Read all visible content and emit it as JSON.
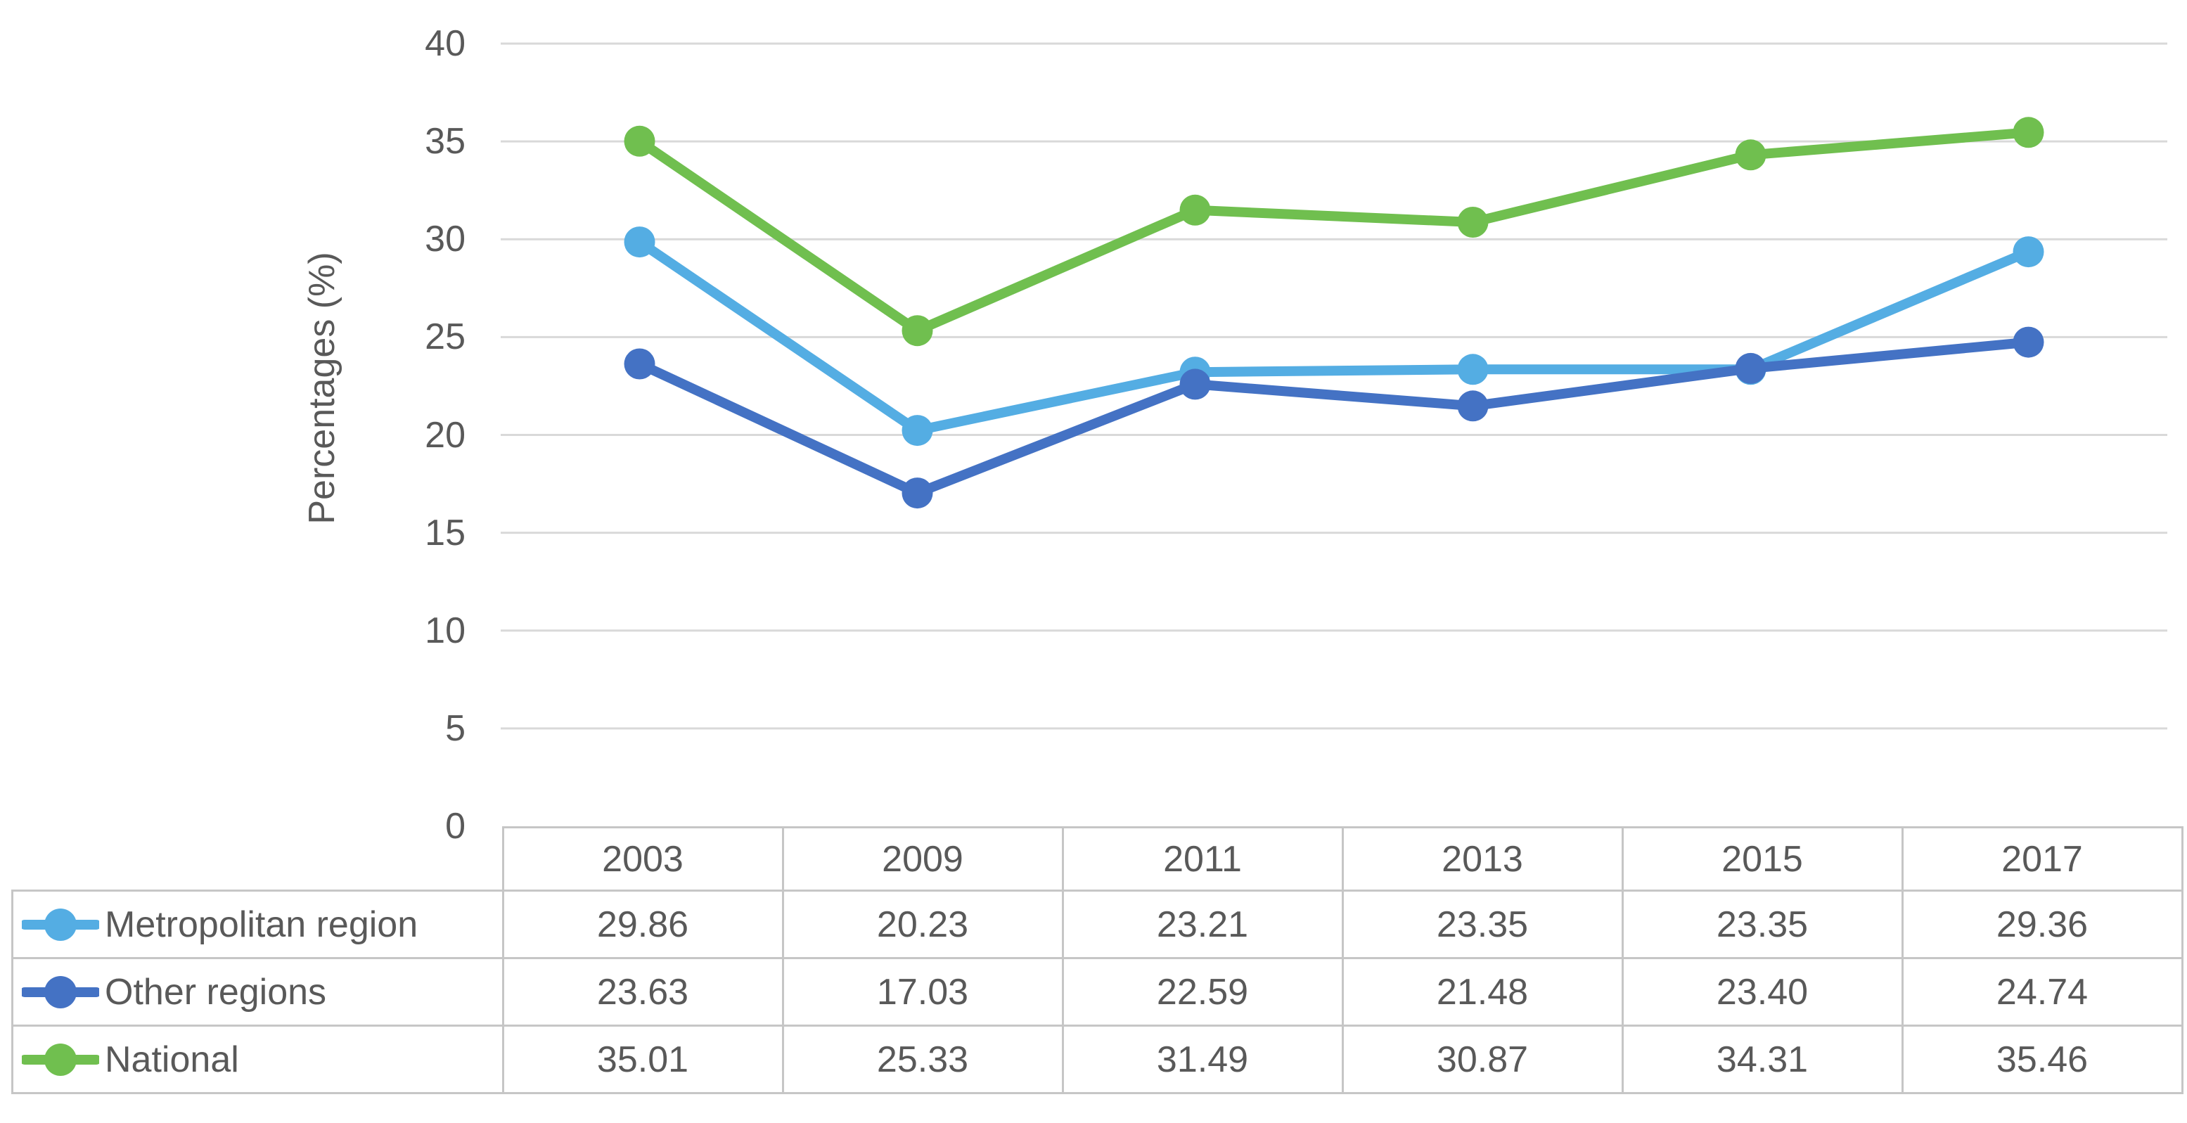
{
  "chart_data": {
    "type": "line",
    "categories": [
      "2003",
      "2009",
      "2011",
      "2013",
      "2015",
      "2017"
    ],
    "series": [
      {
        "name": "Metropolitan region",
        "color": "#54ADE3",
        "values": [
          29.86,
          20.23,
          23.21,
          23.35,
          23.35,
          29.36
        ]
      },
      {
        "name": "Other regions",
        "color": "#4472C4",
        "values": [
          23.63,
          17.03,
          22.59,
          21.48,
          23.4,
          24.74
        ]
      },
      {
        "name": "National",
        "color": "#70BF4F",
        "values": [
          35.01,
          25.33,
          31.49,
          30.87,
          34.31,
          35.46
        ]
      }
    ],
    "title": "",
    "xlabel": "",
    "ylabel": "Percentages (%)",
    "ylim": [
      0,
      40
    ],
    "yticks": [
      0,
      5,
      10,
      15,
      20,
      25,
      30,
      35,
      40
    ],
    "grid": "horizontal",
    "legend_position": "data-table-left",
    "data_table": true,
    "value_decimals": 2
  },
  "styles": {
    "grid_color": "#D9D9D9",
    "table_border_color": "#C6C6C6",
    "text_color": "#595959",
    "background": "#FFFFFF",
    "marker_shape": "circle"
  }
}
